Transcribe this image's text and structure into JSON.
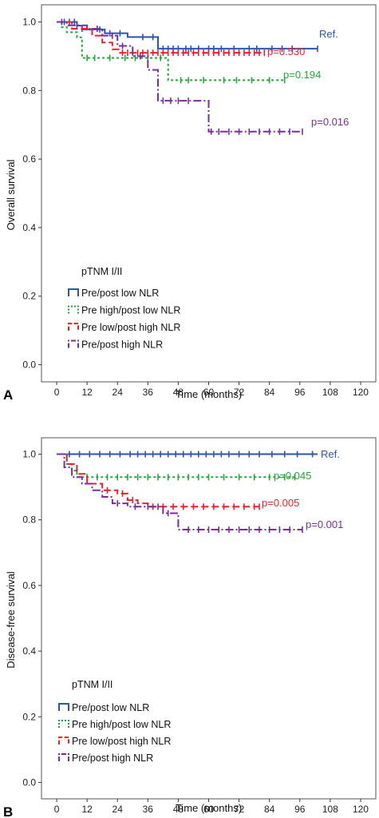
{
  "chart_data": [
    {
      "type": "line",
      "panel_label": "A",
      "xlabel": "Time (months)",
      "ylabel": "Overall survival",
      "xlim": [
        -6,
        126
      ],
      "ylim": [
        -0.05,
        1.05
      ],
      "xticks": [
        "0",
        "12",
        "24",
        "36",
        "48",
        "60",
        "72",
        "84",
        "96",
        "108",
        "120"
      ],
      "yticks": [
        "0.0",
        "0.2",
        "0.4",
        "0.6",
        "0.8",
        "1.0"
      ],
      "legend_title": "pTNM I/II",
      "legend_position": "bottom-left",
      "grid": false,
      "series": [
        {
          "name": "Pre/post low NLR",
          "color": "#2a56b0",
          "dash": "",
          "annotation": "Ref.",
          "x": [
            0,
            8,
            10,
            19,
            28,
            40,
            103
          ],
          "y": [
            1.0,
            0.989,
            0.978,
            0.967,
            0.956,
            0.922,
            0.922
          ],
          "censor": [
            3,
            5,
            7,
            17,
            21,
            25,
            34,
            38,
            42,
            44,
            46,
            48,
            51,
            53,
            56,
            60,
            62,
            65,
            70,
            76,
            79,
            85,
            89,
            93,
            103
          ]
        },
        {
          "name": "Pre high/post low NLR",
          "color": "#22a83a",
          "dash": "3,3",
          "annotation": "p=0.194",
          "x": [
            0,
            2,
            4,
            8,
            10,
            44,
            90
          ],
          "y": [
            1.0,
            0.985,
            0.97,
            0.955,
            0.895,
            0.83,
            0.83
          ],
          "censor": [
            12,
            15,
            21,
            27,
            31,
            36,
            41,
            49,
            52,
            58,
            66,
            71,
            77,
            84,
            90
          ]
        },
        {
          "name": "Pre low/post high NLR",
          "color": "#e8222a",
          "dash": "9,4",
          "annotation": "p=0.530",
          "x": [
            0,
            6,
            14,
            18,
            22,
            25,
            82
          ],
          "y": [
            1.0,
            0.98,
            0.96,
            0.94,
            0.92,
            0.91,
            0.91
          ],
          "censor": [
            10,
            26,
            28,
            30,
            32,
            34,
            36,
            38,
            40,
            42,
            44,
            46,
            48,
            50,
            52,
            54,
            56,
            58,
            60,
            62,
            64,
            66,
            68,
            70,
            72,
            74,
            76,
            78,
            80,
            82
          ]
        },
        {
          "name": "Pre/post high NLR",
          "color": "#7a2d9e",
          "dash": "10,3,2,3",
          "annotation": "p=0.016",
          "x": [
            0,
            4,
            12,
            18,
            24,
            30,
            36,
            40,
            58,
            60,
            97
          ],
          "y": [
            1.0,
            0.99,
            0.98,
            0.96,
            0.93,
            0.9,
            0.86,
            0.77,
            0.77,
            0.68,
            0.68
          ],
          "censor": [
            2,
            8,
            16,
            22,
            26,
            33,
            42,
            45,
            48,
            52,
            61,
            64,
            68,
            72,
            76,
            80,
            84,
            88,
            92,
            97
          ]
        }
      ]
    },
    {
      "type": "line",
      "panel_label": "B",
      "xlabel": "Time (months)",
      "ylabel": "Disease-free survival",
      "xlim": [
        -6,
        126
      ],
      "ylim": [
        -0.05,
        1.05
      ],
      "xticks": [
        "0",
        "12",
        "24",
        "36",
        "48",
        "60",
        "72",
        "84",
        "96",
        "108",
        "120"
      ],
      "yticks": [
        "0.0",
        "0.2",
        "0.4",
        "0.6",
        "0.8",
        "1.0"
      ],
      "legend_title": "pTNM I/II",
      "legend_position": "bottom-left",
      "grid": false,
      "series": [
        {
          "name": "Pre/post low NLR",
          "color": "#2a56b0",
          "dash": "",
          "annotation": "Ref.",
          "x": [
            0,
            103
          ],
          "y": [
            1.0,
            1.0
          ],
          "censor": [
            5,
            9,
            13,
            17,
            21,
            25,
            29,
            32,
            35,
            38,
            41,
            44,
            47,
            50,
            53,
            56,
            59,
            62,
            65,
            68,
            72,
            76,
            80,
            85,
            90,
            95,
            101
          ]
        },
        {
          "name": "Pre high/post low NLR",
          "color": "#22a83a",
          "dash": "3,3",
          "annotation": "p=0.045",
          "x": [
            0,
            4,
            6,
            8,
            94
          ],
          "y": [
            1.0,
            0.97,
            0.95,
            0.93,
            0.93
          ],
          "censor": [
            12,
            16,
            20,
            24,
            28,
            32,
            36,
            40,
            44,
            48,
            52,
            56,
            60,
            66,
            72,
            78,
            84,
            90,
            94
          ]
        },
        {
          "name": "Pre low/post high NLR",
          "color": "#e8222a",
          "dash": "9,4",
          "annotation": "p=0.005",
          "x": [
            0,
            4,
            8,
            12,
            18,
            24,
            28,
            32,
            36,
            80
          ],
          "y": [
            1.0,
            0.97,
            0.94,
            0.91,
            0.89,
            0.88,
            0.86,
            0.85,
            0.84,
            0.84
          ],
          "censor": [
            20,
            26,
            30,
            38,
            42,
            46,
            50,
            54,
            58,
            62,
            66,
            70,
            74,
            78,
            80
          ]
        },
        {
          "name": "Pre/post high NLR",
          "color": "#7a2d9e",
          "dash": "10,3,2,3",
          "annotation": "p=0.001",
          "x": [
            0,
            3,
            6,
            10,
            14,
            18,
            22,
            28,
            42,
            48,
            97
          ],
          "y": [
            1.0,
            0.96,
            0.93,
            0.91,
            0.89,
            0.87,
            0.85,
            0.84,
            0.82,
            0.77,
            0.77
          ],
          "censor": [
            24,
            31,
            36,
            40,
            44,
            52,
            56,
            60,
            64,
            68,
            72,
            76,
            80,
            84,
            88,
            92,
            97
          ]
        }
      ]
    }
  ]
}
